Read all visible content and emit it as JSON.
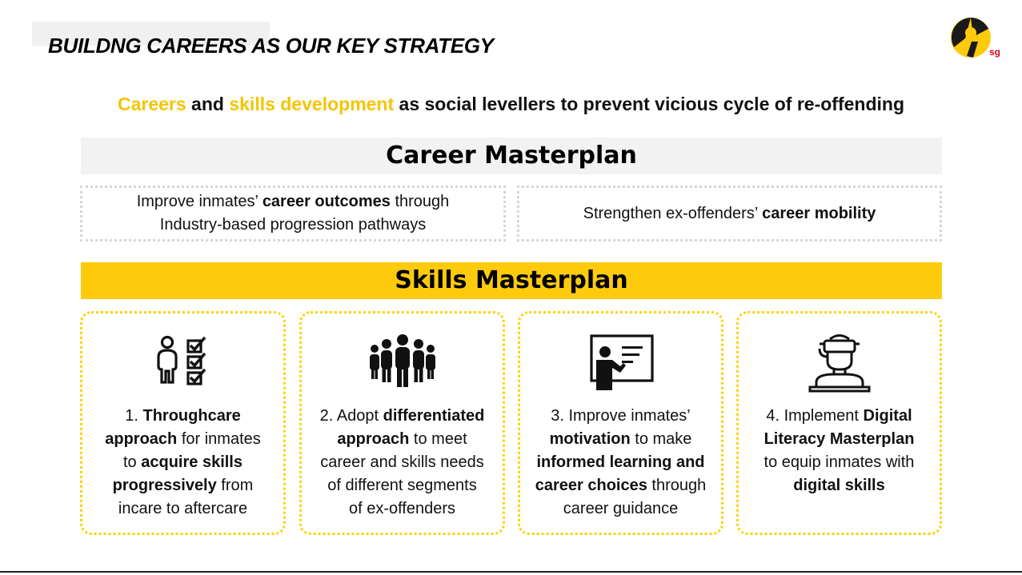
{
  "header": {
    "title": "BUILDNG CAREERS AS OUR KEY STRATEGY"
  },
  "logo": {
    "text": "sg"
  },
  "subtitle": {
    "part1": "Careers",
    "part2": " and ",
    "part3": "skills development",
    "part4": " as social levellers to prevent vicious cycle of re-offending"
  },
  "career_masterplan": {
    "heading": "Career Masterplan",
    "left": {
      "t1": "Improve inmates’ ",
      "b1": "career outcomes",
      "t2": " through",
      "line2": "Industry-based progression pathways"
    },
    "right": {
      "t1": "Strengthen ex-offenders’ ",
      "b1": "career mobility"
    }
  },
  "skills_masterplan": {
    "heading": "Skills Masterplan",
    "cards": [
      {
        "icon": "person-checklist-icon",
        "t1": "1. ",
        "b1": "Throughcare",
        "b2": "approach",
        "t2": " for inmates",
        "t3": "to ",
        "b3": "acquire skills",
        "b4": "progressively",
        "t4": " from",
        "t5": "incare to aftercare"
      },
      {
        "icon": "group-people-icon",
        "t1": "2. Adopt ",
        "b1": "differentiated",
        "b2": "approach",
        "t2": " to meet",
        "t3": "career and skills needs",
        "t4": "of different segments",
        "t5": "of ex-offenders"
      },
      {
        "icon": "teacher-presentation-icon",
        "t1": "3. Improve inmates’",
        "b1": "motivation",
        "t2": " to make",
        "b2": "informed learning and",
        "b3": "career choices",
        "t3": " through",
        "t4": "career guidance"
      },
      {
        "icon": "vr-headset-person-icon",
        "t1": "4. Implement ",
        "b1": "Digital",
        "b2": "Literacy Masterplan",
        "t2": "to equip inmates with",
        "b3": "digital skills"
      }
    ]
  },
  "colors": {
    "accent": "#fecb0c",
    "text": "#111111",
    "band_grey": "#f2f2f2",
    "dotted_grey": "#d6d6d6"
  }
}
